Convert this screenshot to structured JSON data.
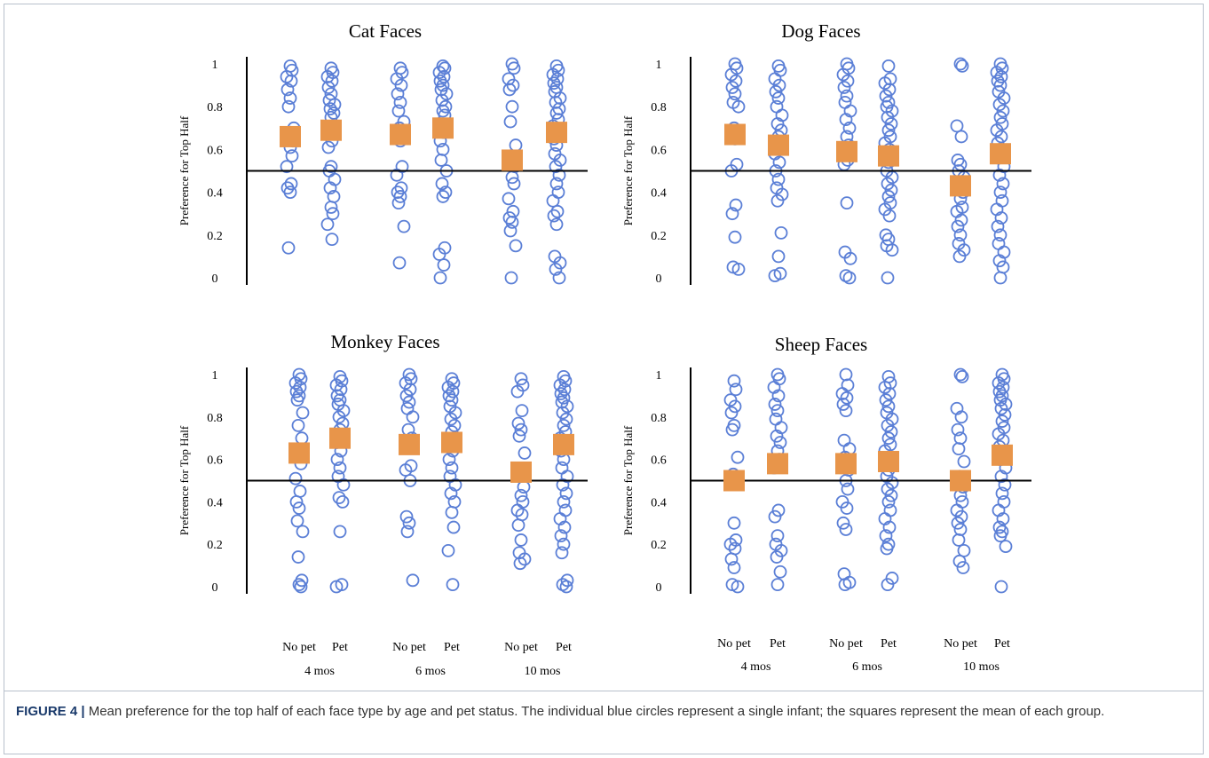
{
  "caption": {
    "label": "FIGURE 4 |",
    "text": "Mean preference for the top half of each face type by age and pet status. The individual blue circles represent a single infant; the squares represent the mean of each group."
  },
  "colors": {
    "point": "#5b7fd6",
    "mean": "#e8954a",
    "reference_line": "#000000"
  },
  "chart_data": [
    {
      "type": "scatter",
      "title": "Cat Faces",
      "ylabel": "Preference for Top Half",
      "ylim": [
        0,
        1
      ],
      "yticks": [
        "0",
        "0.2",
        "0.4",
        "0.6",
        "0.8",
        "1"
      ],
      "reference_y": 0.5,
      "categories": [
        "No pet",
        "Pet",
        "No pet",
        "Pet",
        "No pet",
        "Pet"
      ],
      "age_groups": [
        "4 mos",
        "6 mos",
        "10 mos"
      ],
      "x_labels_shown": false,
      "groups": [
        {
          "pet": "No pet",
          "age": "4 mos",
          "mean": 0.66,
          "points": [
            0.99,
            0.97,
            0.94,
            0.92,
            0.88,
            0.84,
            0.8,
            0.7,
            0.68,
            0.64,
            0.61,
            0.57,
            0.52,
            0.44,
            0.42,
            0.4,
            0.14
          ]
        },
        {
          "pet": "Pet",
          "age": "4 mos",
          "mean": 0.69,
          "points": [
            0.98,
            0.96,
            0.94,
            0.92,
            0.89,
            0.86,
            0.83,
            0.81,
            0.79,
            0.77,
            0.75,
            0.71,
            0.68,
            0.64,
            0.61,
            0.52,
            0.5,
            0.46,
            0.42,
            0.38,
            0.33,
            0.3,
            0.25,
            0.18
          ]
        },
        {
          "pet": "No pet",
          "age": "6 mos",
          "mean": 0.67,
          "points": [
            0.98,
            0.96,
            0.93,
            0.9,
            0.86,
            0.82,
            0.78,
            0.73,
            0.7,
            0.67,
            0.64,
            0.52,
            0.48,
            0.42,
            0.4,
            0.38,
            0.35,
            0.24,
            0.07
          ]
        },
        {
          "pet": "Pet",
          "age": "6 mos",
          "mean": 0.7,
          "points": [
            0.99,
            0.98,
            0.96,
            0.94,
            0.92,
            0.9,
            0.88,
            0.86,
            0.83,
            0.8,
            0.78,
            0.76,
            0.72,
            0.68,
            0.64,
            0.6,
            0.55,
            0.5,
            0.44,
            0.4,
            0.38,
            0.14,
            0.11,
            0.06,
            0.0
          ]
        },
        {
          "pet": "No pet",
          "age": "10 mos",
          "mean": 0.55,
          "points": [
            1.0,
            0.98,
            0.93,
            0.9,
            0.88,
            0.8,
            0.73,
            0.62,
            0.57,
            0.52,
            0.47,
            0.44,
            0.37,
            0.31,
            0.28,
            0.26,
            0.22,
            0.15,
            0.0
          ]
        },
        {
          "pet": "Pet",
          "age": "10 mos",
          "mean": 0.68,
          "points": [
            0.99,
            0.97,
            0.95,
            0.93,
            0.91,
            0.89,
            0.87,
            0.84,
            0.82,
            0.79,
            0.77,
            0.74,
            0.71,
            0.68,
            0.65,
            0.62,
            0.58,
            0.55,
            0.52,
            0.48,
            0.44,
            0.4,
            0.36,
            0.31,
            0.29,
            0.25,
            0.1,
            0.07,
            0.04,
            0.0
          ]
        }
      ]
    },
    {
      "type": "scatter",
      "title": "Dog Faces",
      "ylabel": "Preference for Top Half",
      "ylim": [
        0,
        1
      ],
      "yticks": [
        "0",
        "0.2",
        "0.4",
        "0.6",
        "0.8",
        "1"
      ],
      "reference_y": 0.5,
      "categories": [
        "No pet",
        "Pet",
        "No pet",
        "Pet",
        "No pet",
        "Pet"
      ],
      "age_groups": [
        "4 mos",
        "6 mos",
        "10 mos"
      ],
      "x_labels_shown": false,
      "groups": [
        {
          "pet": "No pet",
          "age": "4 mos",
          "mean": 0.67,
          "points": [
            1.0,
            0.98,
            0.95,
            0.92,
            0.89,
            0.86,
            0.82,
            0.8,
            0.7,
            0.68,
            0.65,
            0.53,
            0.5,
            0.34,
            0.3,
            0.19,
            0.05,
            0.04
          ]
        },
        {
          "pet": "Pet",
          "age": "4 mos",
          "mean": 0.62,
          "points": [
            0.99,
            0.97,
            0.93,
            0.9,
            0.87,
            0.84,
            0.8,
            0.76,
            0.72,
            0.69,
            0.66,
            0.62,
            0.58,
            0.54,
            0.5,
            0.46,
            0.42,
            0.39,
            0.36,
            0.21,
            0.1,
            0.02,
            0.01
          ]
        },
        {
          "pet": "No pet",
          "age": "6 mos",
          "mean": 0.59,
          "points": [
            1.0,
            0.98,
            0.95,
            0.92,
            0.89,
            0.85,
            0.82,
            0.78,
            0.74,
            0.7,
            0.66,
            0.62,
            0.58,
            0.55,
            0.53,
            0.35,
            0.12,
            0.09,
            0.01,
            0.0
          ]
        },
        {
          "pet": "Pet",
          "age": "6 mos",
          "mean": 0.57,
          "points": [
            0.99,
            0.93,
            0.91,
            0.88,
            0.85,
            0.82,
            0.8,
            0.78,
            0.75,
            0.72,
            0.69,
            0.66,
            0.63,
            0.6,
            0.57,
            0.54,
            0.5,
            0.47,
            0.44,
            0.41,
            0.38,
            0.35,
            0.32,
            0.29,
            0.2,
            0.18,
            0.15,
            0.13,
            0.0
          ]
        },
        {
          "pet": "No pet",
          "age": "10 mos",
          "mean": 0.43,
          "points": [
            1.0,
            0.99,
            0.71,
            0.66,
            0.55,
            0.53,
            0.5,
            0.47,
            0.44,
            0.4,
            0.37,
            0.33,
            0.31,
            0.27,
            0.24,
            0.2,
            0.16,
            0.13,
            0.1
          ]
        },
        {
          "pet": "Pet",
          "age": "10 mos",
          "mean": 0.58,
          "points": [
            1.0,
            0.98,
            0.96,
            0.94,
            0.92,
            0.9,
            0.87,
            0.84,
            0.81,
            0.78,
            0.75,
            0.72,
            0.69,
            0.66,
            0.63,
            0.6,
            0.56,
            0.52,
            0.48,
            0.44,
            0.4,
            0.36,
            0.32,
            0.28,
            0.24,
            0.2,
            0.16,
            0.12,
            0.08,
            0.05,
            0.0
          ]
        }
      ]
    },
    {
      "type": "scatter",
      "title": "Monkey Faces",
      "ylabel": "Preference for Top Half",
      "ylim": [
        0,
        1
      ],
      "yticks": [
        "0",
        "0.2",
        "0.4",
        "0.6",
        "0.8",
        "1"
      ],
      "reference_y": 0.5,
      "categories": [
        "No pet",
        "Pet",
        "No pet",
        "Pet",
        "No pet",
        "Pet"
      ],
      "age_groups": [
        "4 mos",
        "6 mos",
        "10 mos"
      ],
      "x_labels_shown": true,
      "groups": [
        {
          "pet": "No pet",
          "age": "4 mos",
          "mean": 0.63,
          "points": [
            1.0,
            0.98,
            0.96,
            0.94,
            0.92,
            0.9,
            0.88,
            0.82,
            0.76,
            0.7,
            0.64,
            0.58,
            0.51,
            0.45,
            0.4,
            0.37,
            0.31,
            0.26,
            0.14,
            0.03,
            0.01,
            0.0
          ]
        },
        {
          "pet": "Pet",
          "age": "4 mos",
          "mean": 0.7,
          "points": [
            0.99,
            0.97,
            0.95,
            0.93,
            0.9,
            0.88,
            0.86,
            0.83,
            0.8,
            0.77,
            0.74,
            0.71,
            0.68,
            0.64,
            0.6,
            0.56,
            0.52,
            0.48,
            0.42,
            0.4,
            0.26,
            0.01,
            0.0
          ]
        },
        {
          "pet": "No pet",
          "age": "6 mos",
          "mean": 0.67,
          "points": [
            1.0,
            0.98,
            0.96,
            0.93,
            0.9,
            0.87,
            0.84,
            0.8,
            0.74,
            0.7,
            0.66,
            0.57,
            0.55,
            0.5,
            0.33,
            0.3,
            0.26,
            0.03
          ]
        },
        {
          "pet": "Pet",
          "age": "6 mos",
          "mean": 0.68,
          "points": [
            0.98,
            0.96,
            0.94,
            0.92,
            0.9,
            0.88,
            0.85,
            0.82,
            0.79,
            0.76,
            0.73,
            0.7,
            0.67,
            0.64,
            0.6,
            0.56,
            0.52,
            0.48,
            0.44,
            0.4,
            0.35,
            0.28,
            0.17,
            0.01
          ]
        },
        {
          "pet": "No pet",
          "age": "10 mos",
          "mean": 0.54,
          "points": [
            0.98,
            0.95,
            0.92,
            0.83,
            0.77,
            0.74,
            0.71,
            0.63,
            0.52,
            0.47,
            0.43,
            0.4,
            0.36,
            0.34,
            0.29,
            0.22,
            0.16,
            0.13,
            0.11
          ]
        },
        {
          "pet": "Pet",
          "age": "10 mos",
          "mean": 0.67,
          "points": [
            0.99,
            0.97,
            0.95,
            0.93,
            0.91,
            0.89,
            0.87,
            0.85,
            0.82,
            0.79,
            0.76,
            0.73,
            0.7,
            0.67,
            0.64,
            0.6,
            0.56,
            0.52,
            0.48,
            0.44,
            0.4,
            0.36,
            0.32,
            0.28,
            0.24,
            0.2,
            0.16,
            0.03,
            0.01,
            0.0
          ]
        }
      ],
      "x_axis_labels": {
        "pet_labels": [
          "No pet",
          "Pet",
          "No pet",
          "Pet",
          "No pet",
          "Pet"
        ],
        "age_labels": [
          "4 mos",
          "6 mos",
          "10 mos"
        ]
      }
    },
    {
      "type": "scatter",
      "title": "Sheep Faces",
      "ylabel": "Preference for Top Half",
      "ylim": [
        0,
        1
      ],
      "yticks": [
        "0",
        "0.2",
        "0.4",
        "0.6",
        "0.8",
        "1"
      ],
      "reference_y": 0.5,
      "categories": [
        "No pet",
        "Pet",
        "No pet",
        "Pet",
        "No pet",
        "Pet"
      ],
      "age_groups": [
        "4 mos",
        "6 mos",
        "10 mos"
      ],
      "x_labels_shown": true,
      "groups": [
        {
          "pet": "No pet",
          "age": "4 mos",
          "mean": 0.5,
          "points": [
            0.97,
            0.93,
            0.88,
            0.85,
            0.82,
            0.76,
            0.74,
            0.61,
            0.53,
            0.5,
            0.3,
            0.22,
            0.2,
            0.18,
            0.13,
            0.09,
            0.01,
            0.0
          ]
        },
        {
          "pet": "Pet",
          "age": "4 mos",
          "mean": 0.58,
          "points": [
            1.0,
            0.98,
            0.94,
            0.9,
            0.86,
            0.83,
            0.79,
            0.75,
            0.71,
            0.68,
            0.64,
            0.6,
            0.56,
            0.36,
            0.33,
            0.24,
            0.2,
            0.17,
            0.14,
            0.07,
            0.01
          ]
        },
        {
          "pet": "No pet",
          "age": "6 mos",
          "mean": 0.58,
          "points": [
            1.0,
            0.95,
            0.91,
            0.89,
            0.86,
            0.83,
            0.69,
            0.65,
            0.61,
            0.55,
            0.5,
            0.46,
            0.4,
            0.37,
            0.3,
            0.27,
            0.06,
            0.02,
            0.01
          ]
        },
        {
          "pet": "Pet",
          "age": "6 mos",
          "mean": 0.59,
          "points": [
            0.99,
            0.96,
            0.94,
            0.91,
            0.88,
            0.85,
            0.82,
            0.79,
            0.76,
            0.73,
            0.7,
            0.67,
            0.64,
            0.61,
            0.58,
            0.55,
            0.52,
            0.49,
            0.46,
            0.43,
            0.4,
            0.36,
            0.32,
            0.28,
            0.24,
            0.2,
            0.18,
            0.04,
            0.01
          ]
        },
        {
          "pet": "No pet",
          "age": "10 mos",
          "mean": 0.5,
          "points": [
            1.0,
            0.99,
            0.84,
            0.8,
            0.74,
            0.7,
            0.65,
            0.59,
            0.52,
            0.47,
            0.43,
            0.4,
            0.36,
            0.33,
            0.3,
            0.27,
            0.22,
            0.17,
            0.12,
            0.09
          ]
        },
        {
          "pet": "Pet",
          "age": "10 mos",
          "mean": 0.62,
          "points": [
            1.0,
            0.98,
            0.96,
            0.94,
            0.92,
            0.9,
            0.88,
            0.86,
            0.84,
            0.81,
            0.78,
            0.75,
            0.72,
            0.69,
            0.66,
            0.63,
            0.6,
            0.56,
            0.52,
            0.48,
            0.44,
            0.4,
            0.36,
            0.32,
            0.28,
            0.26,
            0.24,
            0.19,
            0.0
          ]
        }
      ],
      "x_axis_labels": {
        "pet_labels": [
          "No pet",
          "Pet",
          "No pet",
          "Pet",
          "No pet",
          "Pet"
        ],
        "age_labels": [
          "4 mos",
          "6 mos",
          "10 mos"
        ]
      }
    }
  ]
}
